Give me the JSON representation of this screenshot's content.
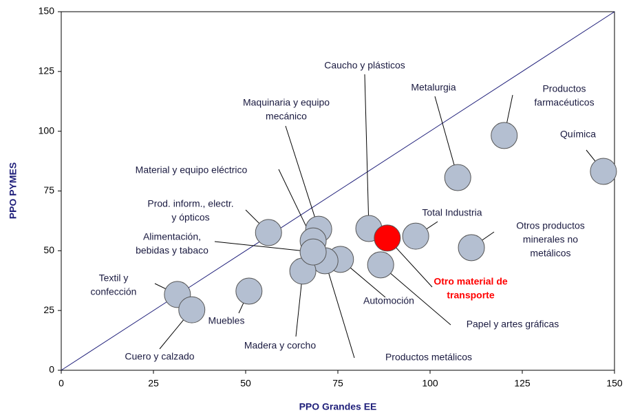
{
  "chart_data": {
    "type": "scatter",
    "x_label": "PPO Grandes EE",
    "y_label": "PPO PYMES",
    "xlim": [
      0,
      150
    ],
    "ylim": [
      0,
      150
    ],
    "xticks": [
      0,
      25,
      50,
      75,
      100,
      125,
      150
    ],
    "yticks": [
      0,
      25,
      50,
      75,
      100,
      125,
      150
    ],
    "color": "#b4bfd1",
    "reference_line": "y=x",
    "points": [
      {
        "label": [
          "Química"
        ],
        "x": 147.0,
        "y": 83.2
      },
      {
        "label": [
          "Productos",
          "farmacéuticos"
        ],
        "x": 120.1,
        "y": 98.2
      },
      {
        "label": [
          "Metalurgia"
        ],
        "x": 107.5,
        "y": 80.6
      },
      {
        "label": [
          "Otros productos",
          "minerales no",
          "metálicos"
        ],
        "x": 111.2,
        "y": 51.3
      },
      {
        "label": [
          "Total Industria"
        ],
        "x": 96.1,
        "y": 56.1
      },
      {
        "label": [
          "Otro material de",
          "transporte"
        ],
        "x": 88.4,
        "y": 55.3,
        "color": "#ff0000"
      },
      {
        "label": [
          "Caucho y plásticos"
        ],
        "x": 83.4,
        "y": 59.3
      },
      {
        "label": [
          "Papel y artes gráficas"
        ],
        "x": 86.6,
        "y": 44.1
      },
      {
        "label": [
          "Automoción"
        ],
        "x": 75.7,
        "y": 46.4
      },
      {
        "label": [
          "Productos metálicos"
        ],
        "x": 71.5,
        "y": 45.8
      },
      {
        "label": [
          "Madera y corcho"
        ],
        "x": 65.5,
        "y": 41.5
      },
      {
        "label": [
          "Maquinaria y equipo",
          "mecánico"
        ],
        "x": 69.8,
        "y": 59.0
      },
      {
        "label": [
          "Material y equipo eléctrico"
        ],
        "x": 68.3,
        "y": 54.1
      },
      {
        "label": [
          "Alimentación,",
          "bebidas y tabaco"
        ],
        "x": 68.3,
        "y": 49.5
      },
      {
        "label": [
          "Prod. inform., electr.",
          "y ópticos"
        ],
        "x": 56.2,
        "y": 57.6
      },
      {
        "label": [
          "Muebles"
        ],
        "x": 50.9,
        "y": 33.1
      },
      {
        "label": [
          "Textil y",
          "confección"
        ],
        "x": 31.5,
        "y": 31.7
      },
      {
        "label": [
          "Cuero y calzado"
        ],
        "x": 35.4,
        "y": 25.3
      }
    ]
  }
}
